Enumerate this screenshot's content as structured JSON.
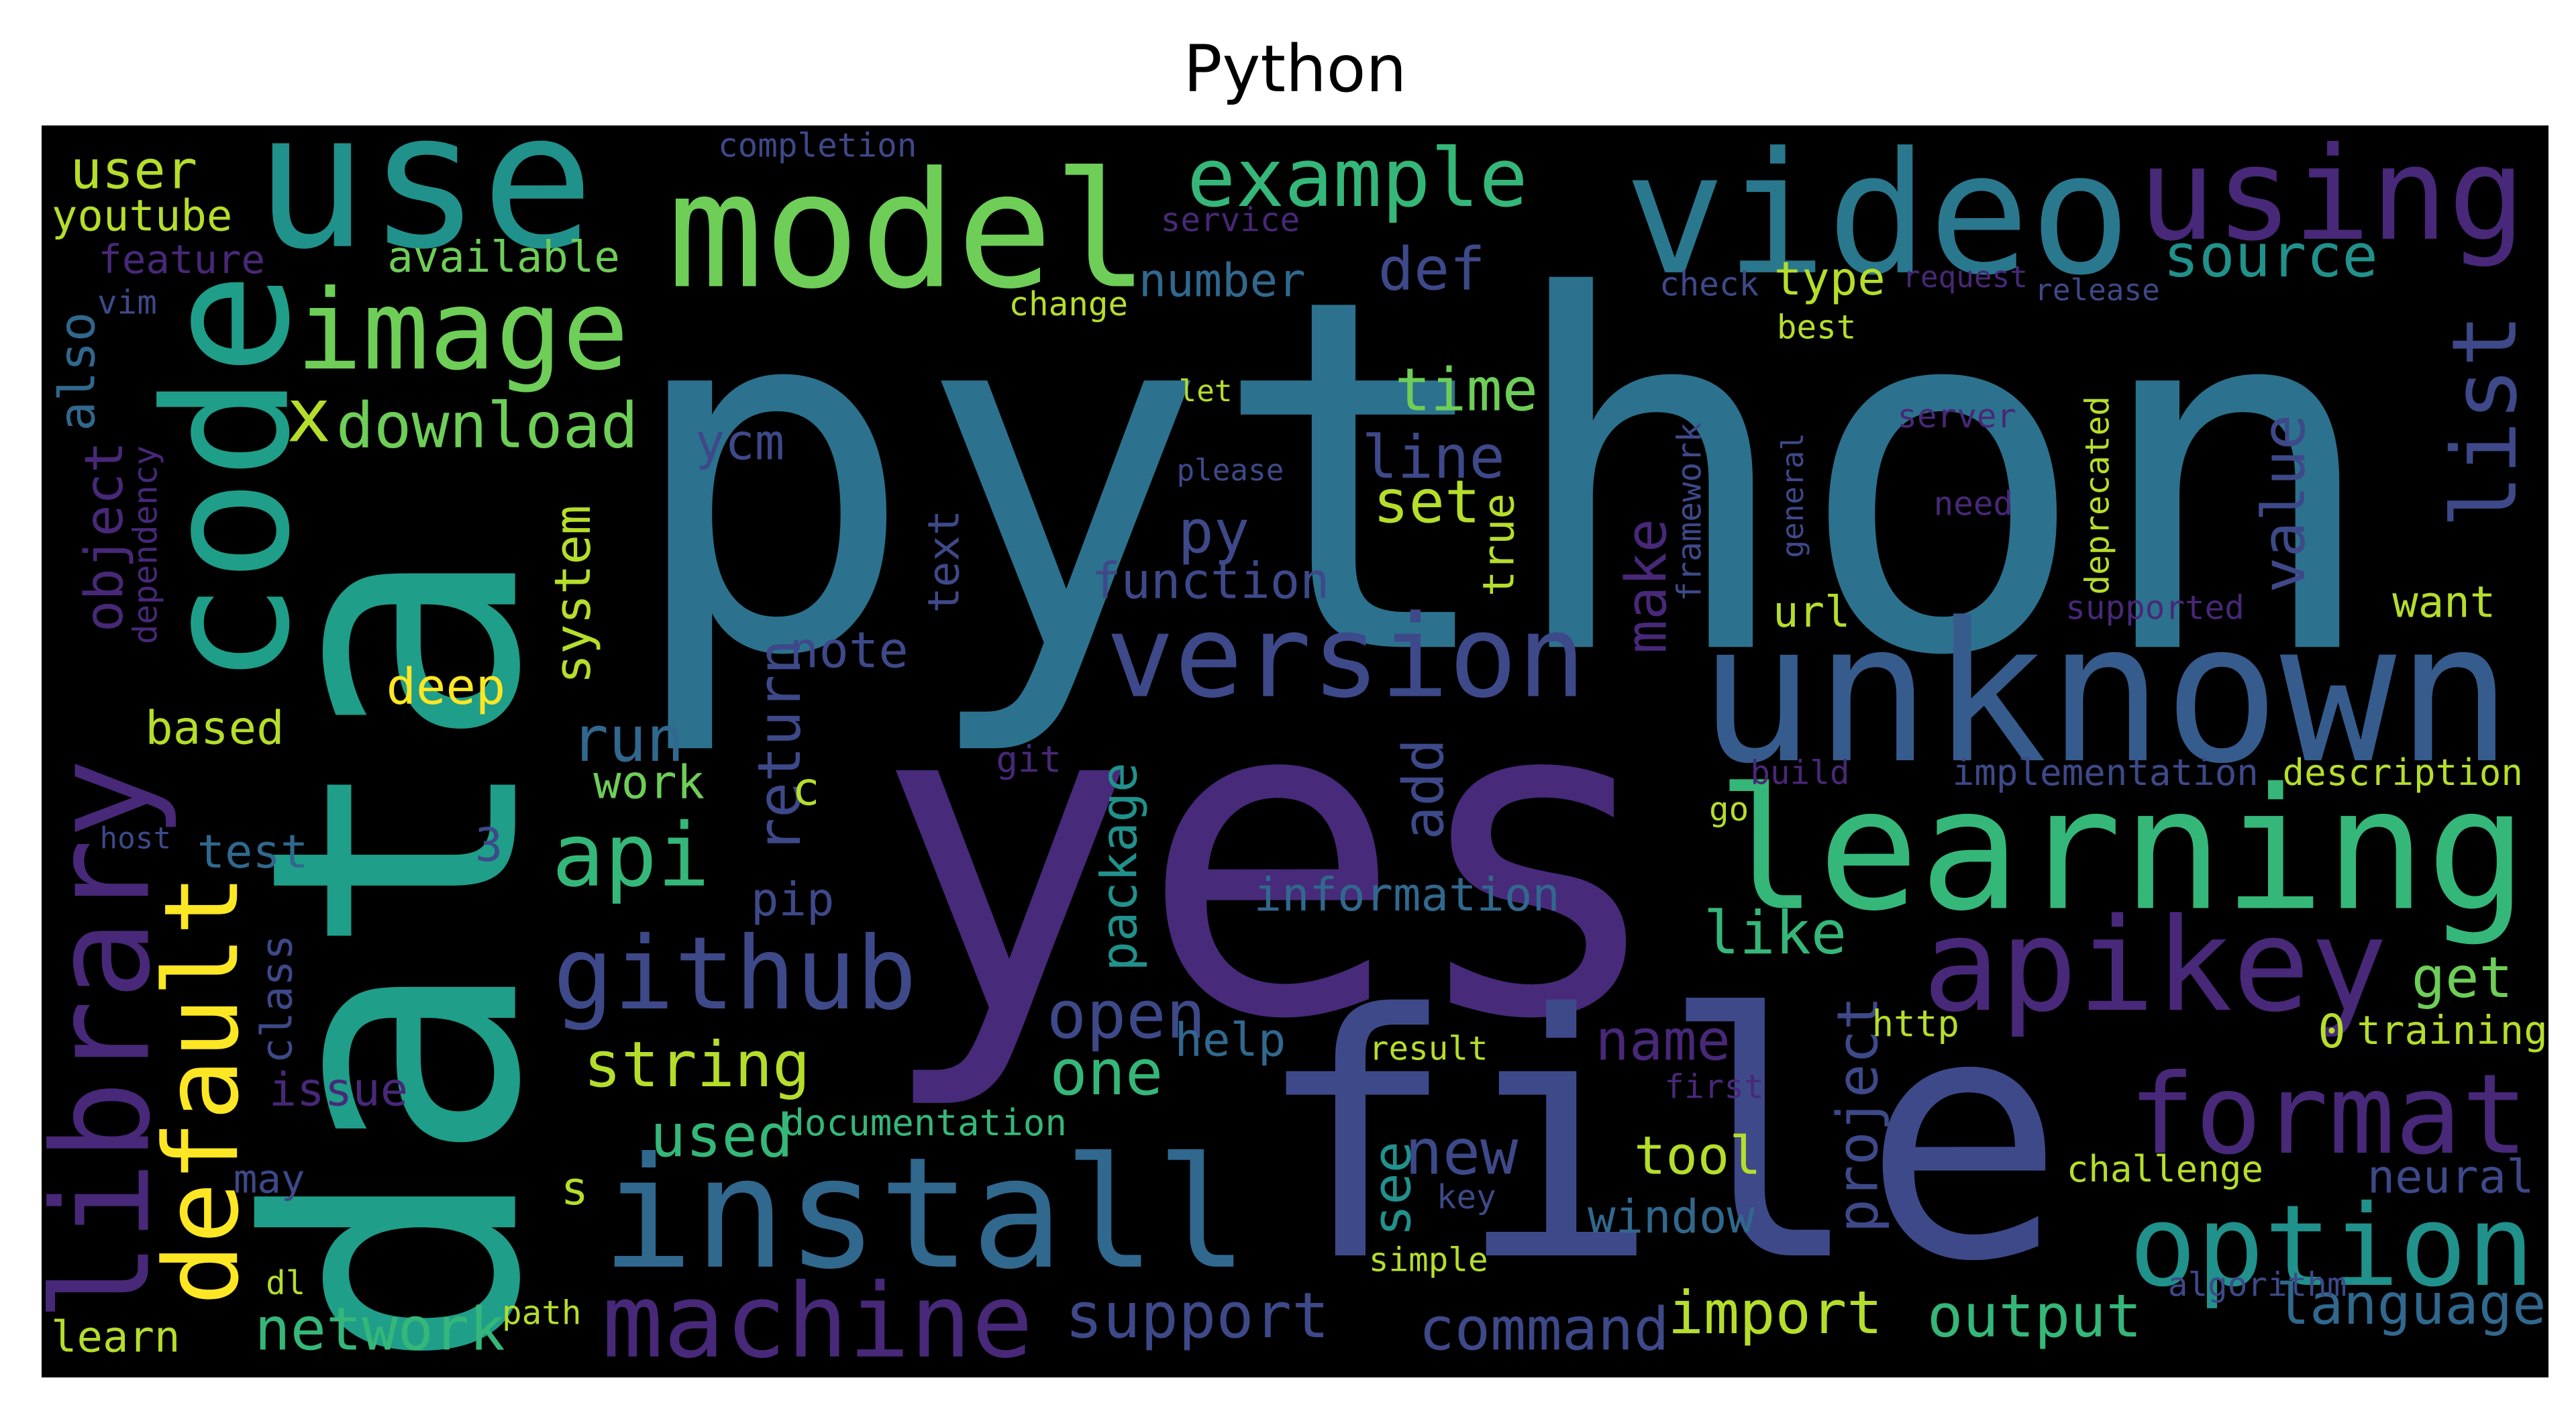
{
  "chart_data": {
    "type": "wordcloud",
    "title": "Python",
    "background": "#000000",
    "words": [
      {
        "text": "python",
        "color": "#2c728e"
      },
      {
        "text": "yes",
        "color": "#472a7a"
      },
      {
        "text": "data",
        "color": "#1f9e89"
      },
      {
        "text": "file",
        "color": "#3e4989"
      },
      {
        "text": "unknown",
        "color": "#365c8d"
      },
      {
        "text": "learning",
        "color": "#35b779"
      },
      {
        "text": "install",
        "color": "#31688e"
      },
      {
        "text": "video",
        "color": "#2a788e"
      },
      {
        "text": "using",
        "color": "#482878"
      },
      {
        "text": "use",
        "color": "#21918c"
      },
      {
        "text": "model",
        "color": "#6ece58"
      },
      {
        "text": "code",
        "color": "#1f9e89"
      },
      {
        "text": "image",
        "color": "#6ece58"
      },
      {
        "text": "example",
        "color": "#35b779"
      },
      {
        "text": "version",
        "color": "#3e4989"
      },
      {
        "text": "api",
        "color": "#35b779"
      },
      {
        "text": "github",
        "color": "#3e4989"
      },
      {
        "text": "apikey",
        "color": "#482878"
      },
      {
        "text": "format",
        "color": "#482878"
      },
      {
        "text": "option",
        "color": "#21918c"
      },
      {
        "text": "machine",
        "color": "#482878"
      },
      {
        "text": "library",
        "color": "#482878"
      },
      {
        "text": "default",
        "color": "#fde725"
      },
      {
        "text": "list",
        "color": "#3e4989"
      },
      {
        "text": "download",
        "color": "#6ece58"
      },
      {
        "text": "x",
        "color": "#b5de2b"
      },
      {
        "text": "string",
        "color": "#b5de2b"
      },
      {
        "text": "one",
        "color": "#35b779"
      },
      {
        "text": "open",
        "color": "#3e4989"
      },
      {
        "text": "help",
        "color": "#31688e"
      },
      {
        "text": "name",
        "color": "#482878"
      },
      {
        "text": "new",
        "color": "#3e4989"
      },
      {
        "text": "used",
        "color": "#35b779"
      },
      {
        "text": "support",
        "color": "#3e4989"
      },
      {
        "text": "command",
        "color": "#3e4989"
      },
      {
        "text": "import",
        "color": "#b5de2b"
      },
      {
        "text": "output",
        "color": "#35b779"
      },
      {
        "text": "language",
        "color": "#31688e"
      },
      {
        "text": "network",
        "color": "#35b779"
      },
      {
        "text": "tool",
        "color": "#b5de2b"
      },
      {
        "text": "window",
        "color": "#31688e"
      },
      {
        "text": "source",
        "color": "#21918c"
      },
      {
        "text": "def",
        "color": "#3e4989"
      },
      {
        "text": "time",
        "color": "#6ece58"
      },
      {
        "text": "line",
        "color": "#3e4989"
      },
      {
        "text": "set",
        "color": "#b5de2b"
      },
      {
        "text": "py",
        "color": "#3e4989"
      },
      {
        "text": "function",
        "color": "#3e4989"
      },
      {
        "text": "note",
        "color": "#3e4989"
      },
      {
        "text": "run",
        "color": "#31688e"
      },
      {
        "text": "deep",
        "color": "#fde725"
      },
      {
        "text": "based",
        "color": "#b5de2b"
      },
      {
        "text": "work",
        "color": "#6ece58"
      },
      {
        "text": "test",
        "color": "#31688e"
      },
      {
        "text": "user",
        "color": "#b5de2b"
      },
      {
        "text": "youtube",
        "color": "#b5de2b"
      },
      {
        "text": "feature",
        "color": "#482878"
      },
      {
        "text": "available",
        "color": "#6ece58"
      },
      {
        "text": "also",
        "color": "#31688e"
      },
      {
        "text": "object",
        "color": "#482878"
      },
      {
        "text": "system",
        "color": "#b5de2b"
      },
      {
        "text": "return",
        "color": "#3e4989"
      },
      {
        "text": "make",
        "color": "#482878"
      },
      {
        "text": "value",
        "color": "#3e4989"
      },
      {
        "text": "true",
        "color": "#b5de2b"
      },
      {
        "text": "add",
        "color": "#3e4989"
      },
      {
        "text": "package",
        "color": "#21918c"
      },
      {
        "text": "project",
        "color": "#3e4989"
      },
      {
        "text": "see",
        "color": "#21918c"
      },
      {
        "text": "information",
        "color": "#31688e"
      },
      {
        "text": "like",
        "color": "#35b779"
      },
      {
        "text": "get",
        "color": "#6ece58"
      },
      {
        "text": "training",
        "color": "#b5de2b"
      },
      {
        "text": "neural",
        "color": "#3e4989"
      },
      {
        "text": "challenge",
        "color": "#b5de2b"
      },
      {
        "text": "pip",
        "color": "#3e4989"
      },
      {
        "text": "class",
        "color": "#3e4989"
      },
      {
        "text": "issue",
        "color": "#482878"
      },
      {
        "text": "may",
        "color": "#3e4989"
      },
      {
        "text": "learn",
        "color": "#b5de2b"
      },
      {
        "text": "dl",
        "color": "#b5de2b"
      },
      {
        "text": "path",
        "color": "#b5de2b"
      },
      {
        "text": "documentation",
        "color": "#35b779"
      },
      {
        "text": "number",
        "color": "#31688e"
      },
      {
        "text": "type",
        "color": "#b5de2b"
      },
      {
        "text": "change",
        "color": "#b5de2b"
      },
      {
        "text": "completion",
        "color": "#3e4989"
      },
      {
        "text": "service",
        "color": "#482878"
      },
      {
        "text": "check",
        "color": "#3e4989"
      },
      {
        "text": "request",
        "color": "#482878"
      },
      {
        "text": "release",
        "color": "#3e4989"
      },
      {
        "text": "best",
        "color": "#b5de2b"
      },
      {
        "text": "ycm",
        "color": "#3e4989"
      },
      {
        "text": "server",
        "color": "#482878"
      },
      {
        "text": "framework",
        "color": "#3e4989"
      },
      {
        "text": "need",
        "color": "#482878"
      },
      {
        "text": "deprecated",
        "color": "#b5de2b"
      },
      {
        "text": "url",
        "color": "#b5de2b"
      },
      {
        "text": "want",
        "color": "#b5de2b"
      },
      {
        "text": "supported",
        "color": "#482878"
      },
      {
        "text": "text",
        "color": "#3e4989"
      },
      {
        "text": "description",
        "color": "#b5de2b"
      },
      {
        "text": "implementation",
        "color": "#3e4989"
      },
      {
        "text": "build",
        "color": "#482878"
      },
      {
        "text": "git",
        "color": "#482878"
      },
      {
        "text": "http",
        "color": "#b5de2b"
      },
      {
        "text": "result",
        "color": "#b5de2b"
      },
      {
        "text": "first",
        "color": "#482878"
      },
      {
        "text": "algorithm",
        "color": "#3e4989"
      },
      {
        "text": "simple",
        "color": "#b5de2b"
      },
      {
        "text": "key",
        "color": "#3e4989"
      },
      {
        "text": "s",
        "color": "#b5de2b"
      },
      {
        "text": "3",
        "color": "#3e4989"
      },
      {
        "text": "0",
        "color": "#b5de2b"
      },
      {
        "text": "c",
        "color": "#b5de2b"
      },
      {
        "text": "dependency",
        "color": "#482878"
      },
      {
        "text": "go",
        "color": "#b5de2b"
      },
      {
        "text": "host",
        "color": "#3e4989"
      },
      {
        "text": "vim",
        "color": "#3e4989"
      },
      {
        "text": "please",
        "color": "#3e4989"
      },
      {
        "text": "let",
        "color": "#b5de2b"
      },
      {
        "text": "general",
        "color": "#3e4989"
      }
    ]
  }
}
